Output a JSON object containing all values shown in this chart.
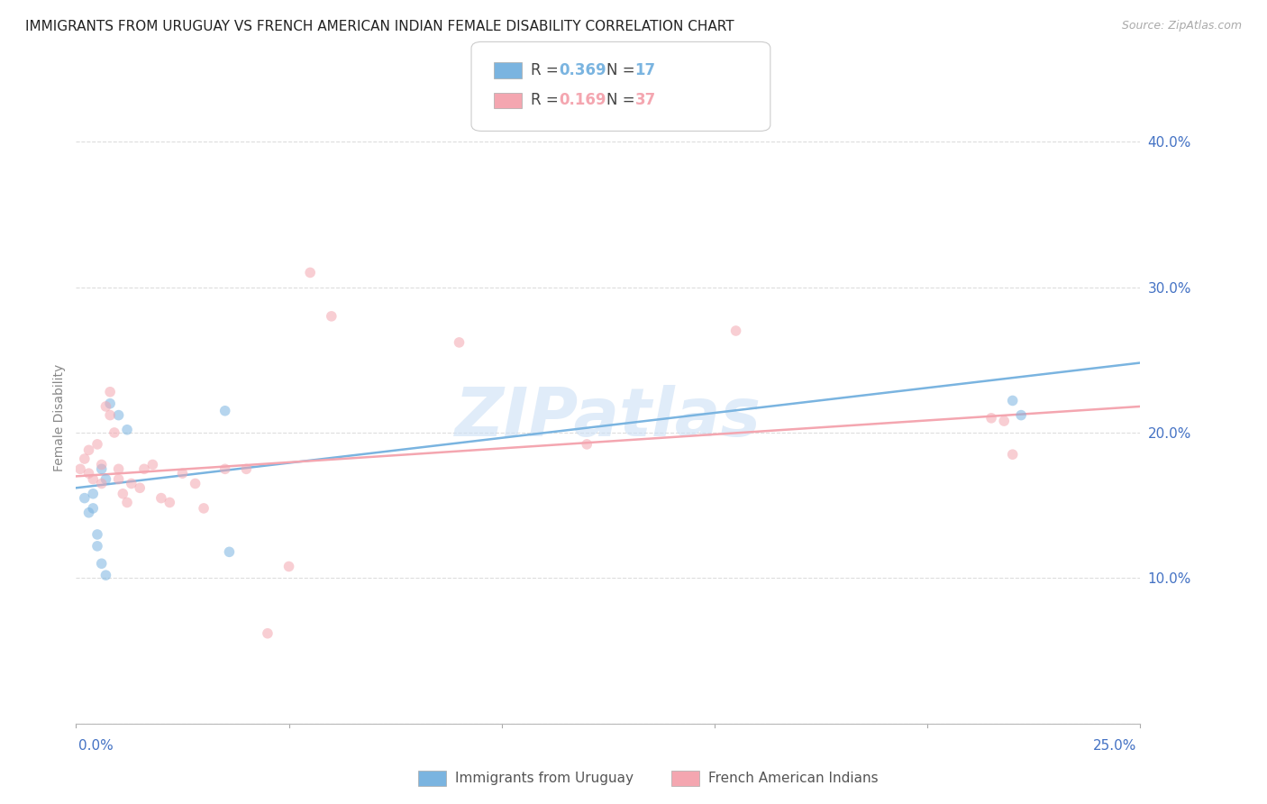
{
  "title": "IMMIGRANTS FROM URUGUAY VS FRENCH AMERICAN INDIAN FEMALE DISABILITY CORRELATION CHART",
  "source": "Source: ZipAtlas.com",
  "ylabel": "Female Disability",
  "xmin": 0.0,
  "xmax": 0.25,
  "ymin": 0.0,
  "ymax": 0.42,
  "watermark": "ZIPatlas",
  "ytick_vals": [
    0.0,
    0.1,
    0.2,
    0.3,
    0.4
  ],
  "ytick_labels": [
    "",
    "10.0%",
    "20.0%",
    "30.0%",
    "40.0%"
  ],
  "xtick_vals": [
    0.0,
    0.05,
    0.1,
    0.15,
    0.2,
    0.25
  ],
  "uruguay_scatter_x": [
    0.002,
    0.003,
    0.004,
    0.004,
    0.005,
    0.005,
    0.006,
    0.006,
    0.007,
    0.007,
    0.008,
    0.01,
    0.012,
    0.035,
    0.036,
    0.22,
    0.222
  ],
  "uruguay_scatter_y": [
    0.155,
    0.145,
    0.158,
    0.148,
    0.13,
    0.122,
    0.11,
    0.175,
    0.168,
    0.102,
    0.22,
    0.212,
    0.202,
    0.215,
    0.118,
    0.222,
    0.212
  ],
  "french_scatter_x": [
    0.001,
    0.002,
    0.003,
    0.003,
    0.004,
    0.005,
    0.006,
    0.006,
    0.007,
    0.008,
    0.008,
    0.009,
    0.01,
    0.01,
    0.011,
    0.012,
    0.013,
    0.015,
    0.016,
    0.018,
    0.02,
    0.022,
    0.025,
    0.028,
    0.03,
    0.035,
    0.04,
    0.045,
    0.05,
    0.055,
    0.06,
    0.09,
    0.12,
    0.155,
    0.215,
    0.218,
    0.22
  ],
  "french_scatter_y": [
    0.175,
    0.182,
    0.188,
    0.172,
    0.168,
    0.192,
    0.178,
    0.165,
    0.218,
    0.228,
    0.212,
    0.2,
    0.175,
    0.168,
    0.158,
    0.152,
    0.165,
    0.162,
    0.175,
    0.178,
    0.155,
    0.152,
    0.172,
    0.165,
    0.148,
    0.175,
    0.175,
    0.062,
    0.108,
    0.31,
    0.28,
    0.262,
    0.192,
    0.27,
    0.21,
    0.208,
    0.185
  ],
  "uruguay_line_x": [
    0.0,
    0.25
  ],
  "uruguay_line_y": [
    0.162,
    0.248
  ],
  "french_line_x": [
    0.0,
    0.25
  ],
  "french_line_y": [
    0.17,
    0.218
  ],
  "scatter_size": 70,
  "scatter_alpha": 0.55,
  "line_width": 1.8,
  "uruguay_color": "#7ab4e0",
  "french_color": "#f4a6b0",
  "background_color": "#ffffff",
  "grid_color": "#dddddd",
  "title_fontsize": 11,
  "tick_label_color": "#4472c4",
  "ylabel_color": "#888888",
  "legend_r1": "0.369",
  "legend_n1": "17",
  "legend_r2": "0.169",
  "legend_n2": "37",
  "bottom_legend_label1": "Immigrants from Uruguay",
  "bottom_legend_label2": "French American Indians"
}
